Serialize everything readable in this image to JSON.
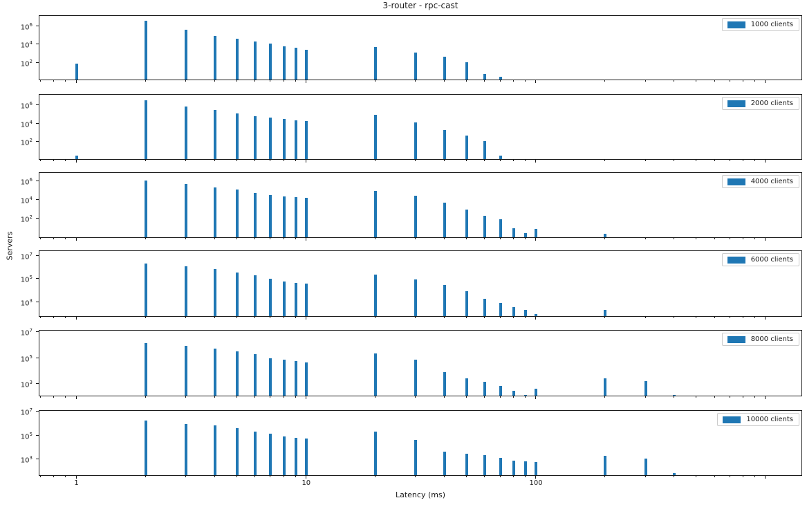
{
  "chart_data": {
    "type": "bar",
    "title": "3-router - rpc-cast",
    "xlabel": "Latency (ms)",
    "ylabel": "Servers",
    "x_scale": "log",
    "y_scale": "log",
    "grid": false,
    "legend_position": "upper-right",
    "bar_color": "#1f77b4",
    "xlim": [
      0.69,
      1450
    ],
    "x_major_ticks": [
      {
        "value": 1,
        "label": "1"
      },
      {
        "value": 10,
        "label": "10"
      },
      {
        "value": 100,
        "label": "100"
      },
      {
        "value": 1000,
        "label": ""
      }
    ],
    "x_minor_ticks": [
      0.7,
      0.8,
      0.9,
      2,
      3,
      4,
      5,
      6,
      7,
      8,
      9,
      20,
      30,
      40,
      50,
      60,
      70,
      80,
      90,
      200,
      300,
      400,
      500,
      600,
      700,
      800,
      900
    ],
    "subplots": [
      {
        "legend_label": "1000 clients",
        "ylim": [
          0.93,
          11000000
        ],
        "y_tick_exponents": [
          6,
          4,
          2
        ],
        "x": [
          1,
          2,
          3,
          4,
          5,
          6,
          7,
          8,
          9,
          10,
          20,
          30,
          40,
          50,
          60,
          70
        ],
        "values": [
          50,
          2500000,
          250000,
          50000,
          25000,
          12000,
          7000,
          4000,
          2500,
          1500,
          3000,
          800,
          300,
          70,
          4,
          2
        ]
      },
      {
        "legend_label": "2000 clients",
        "ylim": [
          0.78,
          11500000
        ],
        "y_tick_exponents": [
          6,
          4,
          2
        ],
        "x": [
          1,
          2,
          3,
          4,
          5,
          6,
          7,
          8,
          9,
          10,
          20,
          30,
          40,
          50,
          60,
          70
        ],
        "values": [
          2,
          2000000,
          400000,
          180000,
          70000,
          35000,
          25000,
          20000,
          14000,
          11000,
          50000,
          8000,
          1200,
          300,
          70,
          2
        ]
      },
      {
        "legend_label": "4000 clients",
        "ylim": [
          0.57,
          7000000
        ],
        "y_tick_exponents": [
          6,
          4,
          2
        ],
        "x": [
          2,
          3,
          4,
          5,
          6,
          7,
          8,
          9,
          10,
          20,
          30,
          40,
          50,
          60,
          70,
          80,
          90,
          100,
          200
        ],
        "values": [
          800000,
          300000,
          140000,
          75000,
          32000,
          20000,
          14000,
          12000,
          10000,
          60000,
          18000,
          3000,
          500,
          120,
          50,
          5,
          1.5,
          4,
          1.2
        ]
      },
      {
        "legend_label": "6000 clients",
        "ylim": [
          45,
          22000000
        ],
        "y_tick_exponents": [
          7,
          5,
          3
        ],
        "x": [
          2,
          3,
          4,
          5,
          6,
          7,
          8,
          9,
          10,
          20,
          30,
          40,
          50,
          60,
          70,
          80,
          90,
          100,
          200
        ],
        "values": [
          1500000,
          800000,
          500000,
          250000,
          130000,
          70000,
          40000,
          30000,
          25000,
          150000,
          60000,
          20000,
          6000,
          1300,
          600,
          250,
          150,
          60,
          150
        ]
      },
      {
        "legend_label": "8000 clients",
        "ylim": [
          93,
          11500000
        ],
        "y_tick_exponents": [
          7,
          5,
          3
        ],
        "x": [
          2,
          3,
          4,
          5,
          6,
          7,
          8,
          9,
          10,
          20,
          30,
          40,
          50,
          60,
          70,
          80,
          90,
          100,
          200,
          300,
          400
        ],
        "values": [
          1000000,
          600000,
          350000,
          220000,
          140000,
          70000,
          50000,
          40000,
          33000,
          150000,
          50000,
          6000,
          2000,
          1000,
          500,
          200,
          100,
          300,
          2000,
          1200,
          100
        ]
      },
      {
        "legend_label": "10000 clients",
        "ylim": [
          32,
          10000000
        ],
        "y_tick_exponents": [
          7,
          5,
          3
        ],
        "x": [
          2,
          3,
          4,
          5,
          6,
          7,
          8,
          9,
          10,
          20,
          30,
          40,
          50,
          60,
          70,
          80,
          90,
          100,
          200,
          300,
          400
        ],
        "values": [
          1200000,
          600000,
          450000,
          260000,
          140000,
          90000,
          55000,
          44000,
          35000,
          140000,
          30000,
          3000,
          2000,
          1500,
          900,
          550,
          450,
          400,
          1400,
          800,
          50
        ]
      }
    ]
  }
}
